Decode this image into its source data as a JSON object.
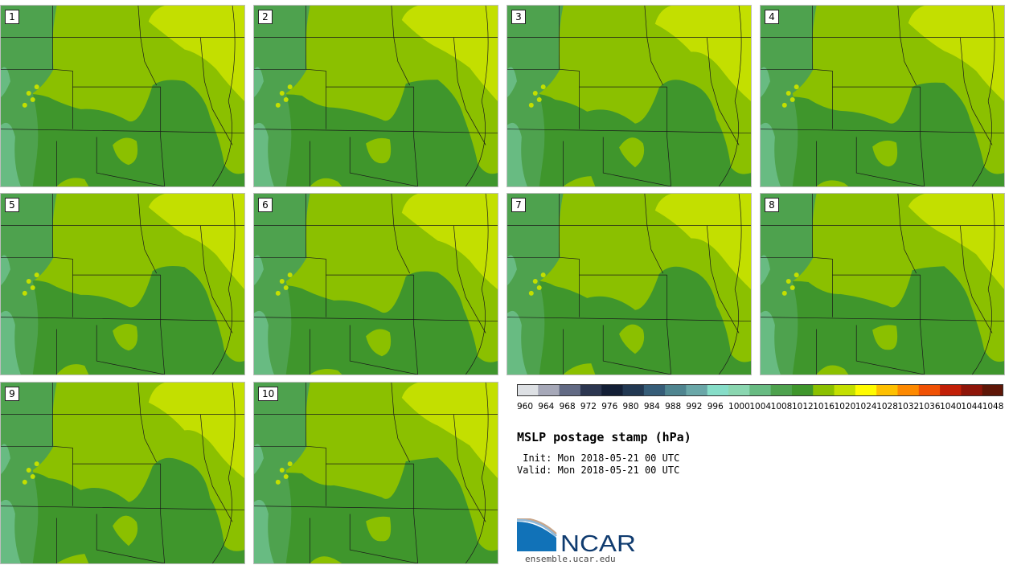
{
  "title": "MSLP postage stamp (hPa)",
  "init_text": " Init: Mon 2018-05-21 00 UTC",
  "valid_text": "Valid: Mon 2018-05-21 00 UTC",
  "logo_text": "NCAR",
  "logo_url": "ensemble.ucar.edu",
  "panels": [
    {
      "label": "1"
    },
    {
      "label": "2"
    },
    {
      "label": "3"
    },
    {
      "label": "4"
    },
    {
      "label": "5"
    },
    {
      "label": "6"
    },
    {
      "label": "7"
    },
    {
      "label": "8"
    },
    {
      "label": "9"
    },
    {
      "label": "10"
    }
  ],
  "colorbar": {
    "tick_labels": [
      "960",
      "964",
      "968",
      "972",
      "976",
      "980",
      "984",
      "988",
      "992",
      "996",
      "1000",
      "1004",
      "1008",
      "1012",
      "1016",
      "1020",
      "1024",
      "1028",
      "1032",
      "1036",
      "1040",
      "1044",
      "1048"
    ],
    "colors": [
      "#dde0e4",
      "#a6a8b8",
      "#626a84",
      "#2c3650",
      "#131f36",
      "#223852",
      "#365d78",
      "#4f8590",
      "#6aa7a8",
      "#86ddc8",
      "#8ad6b0",
      "#68bb82",
      "#4ea24e",
      "#3f962c",
      "#8bc000",
      "#c3df00",
      "#fffb00",
      "#fec000",
      "#fd8900",
      "#f05104",
      "#c21f07",
      "#8e1509",
      "#5e1607"
    ]
  },
  "map_colors": {
    "low": "#3f962c",
    "mid": "#8bc000",
    "high": "#c3df00",
    "terrain": "#4ea24e",
    "terrain_light": "#68bb82",
    "border": "#1a1a1a"
  }
}
